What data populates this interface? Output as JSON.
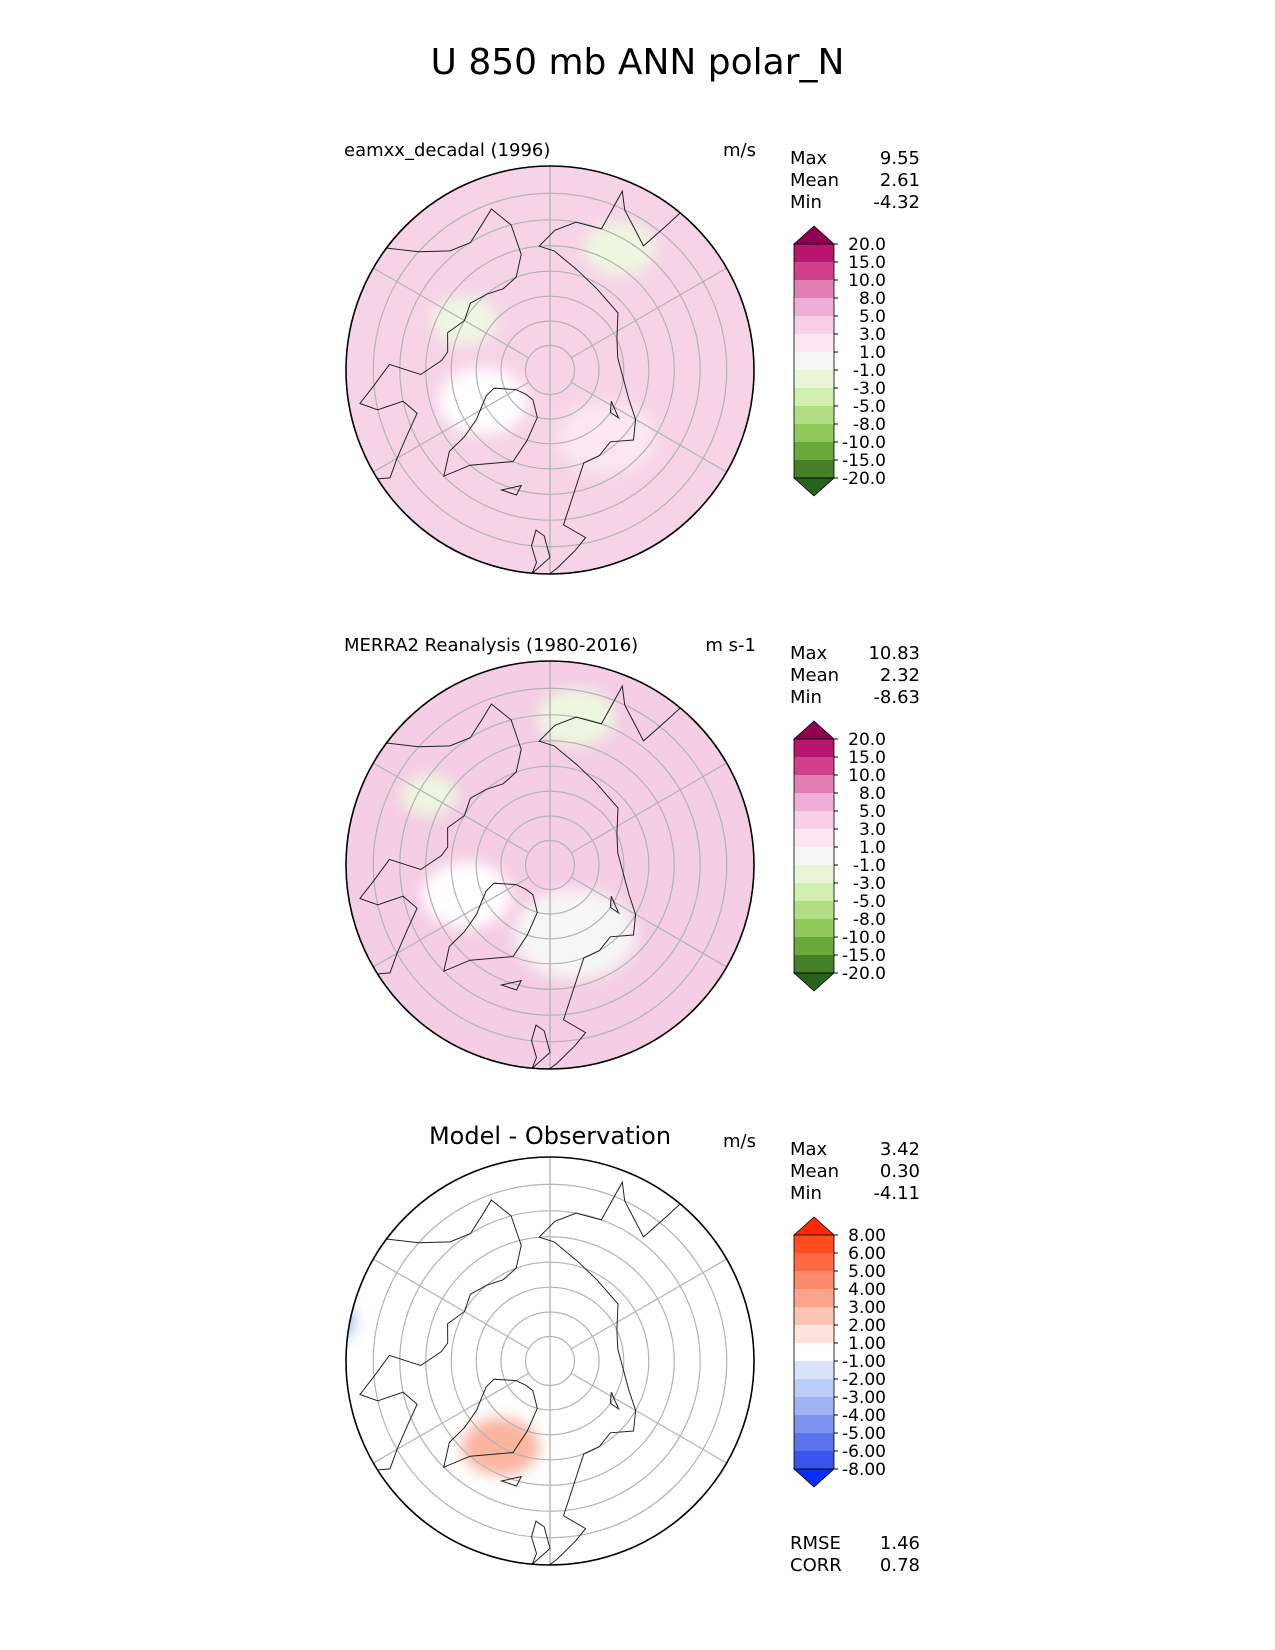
{
  "title": "U 850 mb ANN polar_N",
  "panels": [
    {
      "id": "test",
      "title": "eamxx_decadal (1996)",
      "units": "m/s",
      "stats": [
        {
          "label": "Max",
          "value": "9.55"
        },
        {
          "label": "Mean",
          "value": "2.61"
        },
        {
          "label": "Min",
          "value": "-4.32"
        }
      ],
      "colorbar": {
        "ticks": [
          "20.0",
          "15.0",
          "10.0",
          "8.0",
          "5.0",
          "3.0",
          "1.0",
          "-1.0",
          "-3.0",
          "-5.0",
          "-8.0",
          "-10.0",
          "-15.0",
          "-20.0"
        ],
        "colors": [
          "#8e0152",
          "#b8156f",
          "#d1408c",
          "#e07eb5",
          "#efaed4",
          "#f7cee6",
          "#fbe6f1",
          "#f6f6f6",
          "#e9f5d6",
          "#d2edaf",
          "#b3df83",
          "#8fc85a",
          "#69a83a",
          "#457f28",
          "#276419"
        ]
      },
      "map": {
        "base": "#f7d3e8",
        "blobs": [
          {
            "lat": 30,
            "lon": -95,
            "r": 0.17,
            "color": "#e69bc9"
          },
          {
            "lat": 38,
            "lon": -150,
            "r": 0.16,
            "color": "#ecaed6"
          },
          {
            "lat": 35,
            "lon": 30,
            "r": 0.15,
            "color": "#ecaed6"
          },
          {
            "lat": 38,
            "lon": 150,
            "r": 0.14,
            "color": "#ecaed6"
          },
          {
            "lat": 72,
            "lon": 40,
            "r": 0.18,
            "color": "#fbe6f1"
          },
          {
            "lat": 75,
            "lon": -65,
            "r": 0.16,
            "color": "#ffffff"
          },
          {
            "lat": 70,
            "lon": -120,
            "r": 0.12,
            "color": "#eef6e2"
          },
          {
            "lat": 62,
            "lon": 150,
            "r": 0.13,
            "color": "#eef6e2"
          }
        ]
      }
    },
    {
      "id": "ref",
      "title": "MERRA2 Reanalysis (1980-2016)",
      "units": "m s-1",
      "stats": [
        {
          "label": "Max",
          "value": "10.83"
        },
        {
          "label": "Mean",
          "value": "2.32"
        },
        {
          "label": "Min",
          "value": "-8.63"
        }
      ],
      "colorbar": {
        "ticks": [
          "20.0",
          "15.0",
          "10.0",
          "8.0",
          "5.0",
          "3.0",
          "1.0",
          "-1.0",
          "-3.0",
          "-5.0",
          "-8.0",
          "-10.0",
          "-15.0",
          "-20.0"
        ],
        "colors": [
          "#8e0152",
          "#b8156f",
          "#d1408c",
          "#e07eb5",
          "#efaed4",
          "#f7cee6",
          "#fbe6f1",
          "#f6f6f6",
          "#e9f5d6",
          "#d2edaf",
          "#b3df83",
          "#8fc85a",
          "#69a83a",
          "#457f28",
          "#276419"
        ]
      },
      "map": {
        "base": "#f5cde4",
        "blobs": [
          {
            "lat": 35,
            "lon": 20,
            "r": 0.14,
            "color": "#e9a6d0"
          },
          {
            "lat": 35,
            "lon": -95,
            "r": 0.14,
            "color": "#ecb5d9"
          },
          {
            "lat": 75,
            "lon": 20,
            "r": 0.22,
            "color": "#f6f6f6"
          },
          {
            "lat": 72,
            "lon": -70,
            "r": 0.16,
            "color": "#ffffff"
          },
          {
            "lat": 60,
            "lon": 170,
            "r": 0.14,
            "color": "#eef6e2"
          },
          {
            "lat": 62,
            "lon": -120,
            "r": 0.1,
            "color": "#eef6e2"
          }
        ]
      }
    },
    {
      "id": "diff",
      "title": "Model - Observation",
      "units": "m/s",
      "stats": [
        {
          "label": "Max",
          "value": "3.42"
        },
        {
          "label": "Mean",
          "value": "0.30"
        },
        {
          "label": "Min",
          "value": "-4.11"
        }
      ],
      "colorbar": {
        "ticks": [
          "8.00",
          "6.00",
          "5.00",
          "4.00",
          "3.00",
          "2.00",
          "1.00",
          "-1.00",
          "-2.00",
          "-3.00",
          "-4.00",
          "-5.00",
          "-6.00",
          "-8.00"
        ],
        "colors": [
          "#ff2a00",
          "#ff4d1f",
          "#ff6a45",
          "#fb8a6a",
          "#fca58c",
          "#fcc4b3",
          "#fde3db",
          "#ffffff",
          "#d9e1fb",
          "#bccbf7",
          "#9fb2f3",
          "#7e93ee",
          "#5c72ec",
          "#3a53f0",
          "#0a2dff"
        ]
      },
      "map": {
        "base": "#ffffff",
        "blobs": [
          {
            "lat": 40,
            "lon": 25,
            "r": 0.15,
            "color": "#fbb9a4"
          },
          {
            "lat": 38,
            "lon": 175,
            "r": 0.13,
            "color": "#fcc8b8"
          },
          {
            "lat": 70,
            "lon": -30,
            "r": 0.14,
            "color": "#fbb4a0"
          },
          {
            "lat": 38,
            "lon": -125,
            "r": 0.17,
            "color": "#c6d1f7"
          },
          {
            "lat": 45,
            "lon": -100,
            "r": 0.12,
            "color": "#a9b9f3"
          },
          {
            "lat": 30,
            "lon": -170,
            "r": 0.08,
            "color": "#d6ddfa"
          }
        ]
      }
    }
  ],
  "metrics": [
    {
      "label": "RMSE",
      "value": "1.46"
    },
    {
      "label": "CORR",
      "value": "0.78"
    }
  ],
  "chart_data": {
    "type": "polar-contour-map",
    "title": "U 850 mb ANN polar_N",
    "projection": "north polar stereographic",
    "panels": [
      "eamxx_decadal (1996)",
      "MERRA2 Reanalysis (1980-2016)",
      "Model - Observation"
    ]
  }
}
